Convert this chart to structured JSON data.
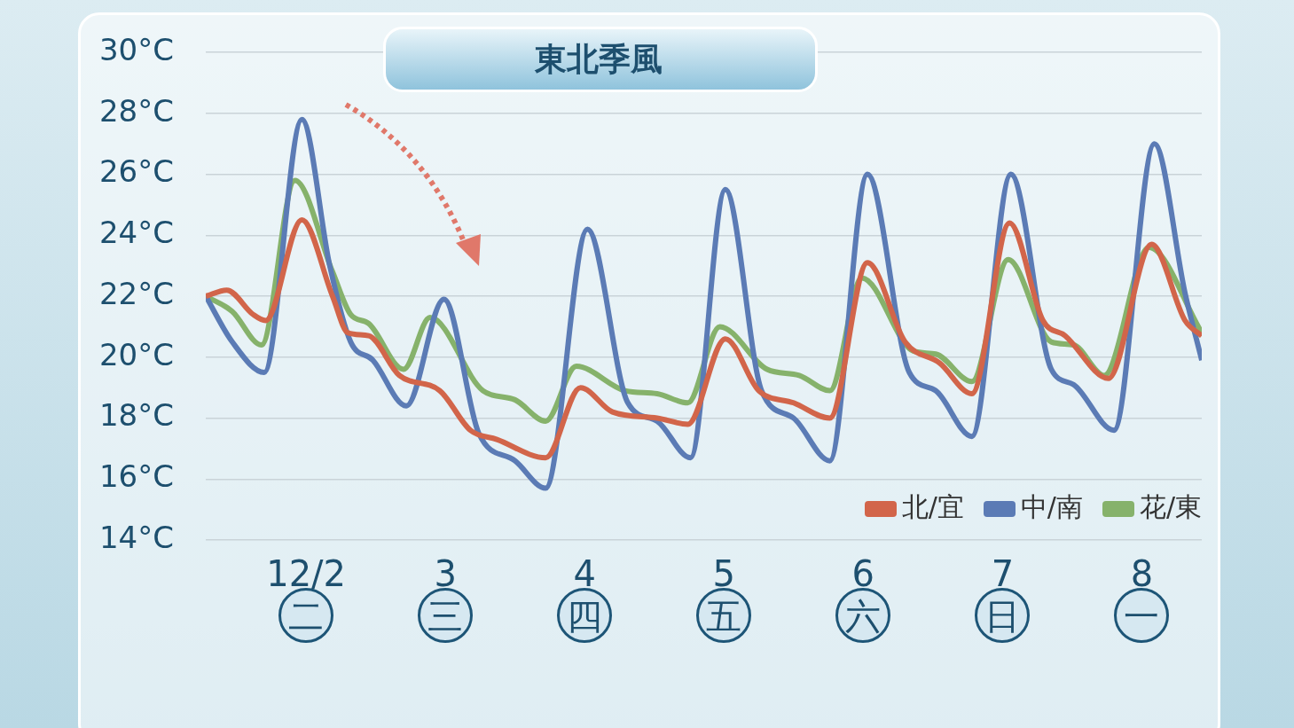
{
  "chart_data": {
    "type": "line",
    "title": "東北季風",
    "xlim": [
      1.28,
      8.43
    ],
    "xticks": [
      {
        "value": 2,
        "label": "12/2\n二"
      },
      {
        "value": 3,
        "label": "3\n三"
      },
      {
        "value": 4,
        "label": "4\n四"
      },
      {
        "value": 5,
        "label": "5\n五"
      },
      {
        "value": 6,
        "label": "6\n六"
      },
      {
        "value": 7,
        "label": "7\n日"
      },
      {
        "value": 8,
        "label": "8\n一"
      }
    ],
    "ylim": [
      14,
      30
    ],
    "yticks": [
      {
        "value": 14,
        "label": "14°C"
      },
      {
        "value": 16,
        "label": "16°C"
      },
      {
        "value": 18,
        "label": "18°C"
      },
      {
        "value": 20,
        "label": "20°C"
      },
      {
        "value": 22,
        "label": "22°C"
      },
      {
        "value": 24,
        "label": "24°C"
      },
      {
        "value": 26,
        "label": "26°C"
      },
      {
        "value": 28,
        "label": "28°C"
      },
      {
        "value": 30,
        "label": "30°C"
      }
    ],
    "grid": "y",
    "legend": "bottom right",
    "marker": "none",
    "line_style": "solid",
    "series": [
      {
        "name": "北/宜",
        "color": "#d2654a",
        "x": [
          1.28,
          1.43,
          1.62,
          1.71,
          1.97,
          2.19,
          2.3,
          2.45,
          2.67,
          2.96,
          3.18,
          3.37,
          3.72,
          3.97,
          4.2,
          4.52,
          4.74,
          5.01,
          5.25,
          5.5,
          5.76,
          6.03,
          6.3,
          6.55,
          6.78,
          7.05,
          7.29,
          7.45,
          7.76,
          8.07,
          8.31,
          8.43
        ],
        "values": [
          22.0,
          22.2,
          21.4,
          21.2,
          24.5,
          22.0,
          20.8,
          20.7,
          19.4,
          18.9,
          17.6,
          17.3,
          16.7,
          19.0,
          18.2,
          18.0,
          17.8,
          20.6,
          18.9,
          18.5,
          18.0,
          23.1,
          20.5,
          19.8,
          18.8,
          24.4,
          21.2,
          20.7,
          19.3,
          23.7,
          21.2,
          20.7
        ]
      },
      {
        "name": "中/南",
        "color": "#5b7bb5",
        "x": [
          1.28,
          1.47,
          1.7,
          1.97,
          2.17,
          2.32,
          2.48,
          2.72,
          2.99,
          3.24,
          3.5,
          3.72,
          4.02,
          4.31,
          4.52,
          4.76,
          5.01,
          5.27,
          5.5,
          5.76,
          6.03,
          6.33,
          6.52,
          6.78,
          7.06,
          7.35,
          7.51,
          7.8,
          8.09,
          8.31,
          8.43
        ],
        "values": [
          22.0,
          20.5,
          19.5,
          27.8,
          23.0,
          20.5,
          19.9,
          18.4,
          21.9,
          17.5,
          16.6,
          15.7,
          24.2,
          18.5,
          17.9,
          16.7,
          25.5,
          18.9,
          18.0,
          16.6,
          26.0,
          19.5,
          18.9,
          17.4,
          26.0,
          19.6,
          19.1,
          17.6,
          27.0,
          22.1,
          19.9
        ]
      },
      {
        "name": "花/東",
        "color": "#86b26b",
        "x": [
          1.28,
          1.47,
          1.68,
          1.92,
          2.19,
          2.32,
          2.45,
          2.7,
          2.89,
          3.27,
          3.5,
          3.72,
          3.94,
          4.29,
          4.52,
          4.74,
          4.97,
          5.31,
          5.54,
          5.76,
          5.99,
          6.36,
          6.52,
          6.78,
          7.04,
          7.35,
          7.51,
          7.73,
          8.05,
          8.43
        ],
        "values": [
          22.0,
          21.5,
          20.4,
          25.8,
          22.8,
          21.4,
          21.1,
          19.6,
          21.3,
          18.9,
          18.6,
          17.9,
          19.7,
          18.9,
          18.8,
          18.5,
          21.0,
          19.6,
          19.4,
          18.9,
          22.6,
          20.2,
          20.1,
          19.2,
          23.2,
          20.5,
          20.4,
          19.4,
          23.6,
          20.8
        ]
      }
    ]
  }
}
